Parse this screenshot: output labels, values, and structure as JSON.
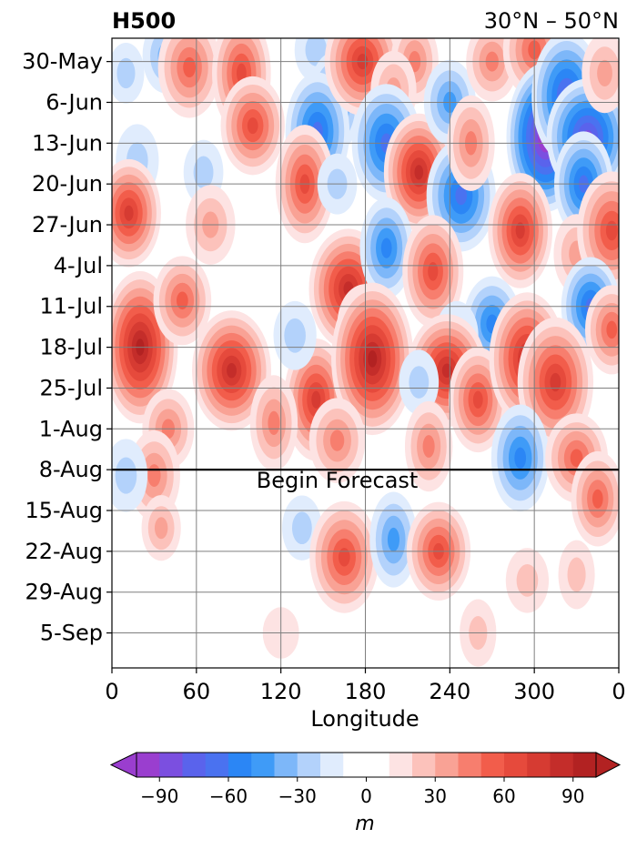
{
  "chart_data": {
    "type": "heatmap",
    "title_left": "H500",
    "title_right": "30°N – 50°N",
    "xlabel": "Longitude",
    "x_ticks": [
      "0",
      "60",
      "120",
      "180",
      "240",
      "300",
      "0"
    ],
    "y_ticks": [
      "30-May",
      "6-Jun",
      "13-Jun",
      "20-Jun",
      "27-Jun",
      "4-Jul",
      "11-Jul",
      "18-Jul",
      "25-Jul",
      "1-Aug",
      "8-Aug",
      "15-Aug",
      "22-Aug",
      "29-Aug",
      "5-Sep"
    ],
    "xlim": [
      0,
      360
    ],
    "ylim_dates": [
      "2022-05-26",
      "2022-09-11"
    ],
    "grid": true,
    "forecast_line": {
      "date": "8-Aug",
      "label": "Begin Forecast"
    },
    "colorbar": {
      "label": "m",
      "orientation": "horizontal",
      "extend": "both",
      "levels": [
        -100,
        -90,
        -80,
        -70,
        -60,
        -50,
        -40,
        -30,
        -20,
        -10,
        0,
        10,
        20,
        30,
        40,
        50,
        60,
        70,
        80,
        90,
        100
      ],
      "tick_labels": [
        "−90",
        "−60",
        "−30",
        "0",
        "30",
        "60",
        "90"
      ],
      "tick_values": [
        -90,
        -60,
        -30,
        0,
        30,
        60,
        90
      ],
      "colors": [
        "#9a3ecf",
        "#7b4fe0",
        "#5a63ec",
        "#4a72f0",
        "#2b86f5",
        "#3f9bf7",
        "#7db7f9",
        "#b3d2fb",
        "#e0ecfd",
        "#ffffff",
        "#ffffff",
        "#fde3e3",
        "#fcc2bb",
        "#f9a295",
        "#f77e6e",
        "#f25d4b",
        "#e64a3c",
        "#d63b32",
        "#c42d2a",
        "#b22222"
      ],
      "extend_low_color": "#9a3ecf",
      "extend_high_color": "#b22222"
    },
    "anomaly_blobs": [
      {
        "lon": 10,
        "date": "2022-06-01",
        "value": -20
      },
      {
        "lon": 38,
        "date": "2022-05-29",
        "value": -30
      },
      {
        "lon": 55,
        "date": "2022-05-31",
        "value": 50
      },
      {
        "lon": 92,
        "date": "2022-06-01",
        "value": 60
      },
      {
        "lon": 100,
        "date": "2022-06-10",
        "value": 60
      },
      {
        "lon": 145,
        "date": "2022-05-28",
        "value": -20
      },
      {
        "lon": 158,
        "date": "2022-06-06",
        "value": -50
      },
      {
        "lon": 146,
        "date": "2022-06-11",
        "value": -60
      },
      {
        "lon": 178,
        "date": "2022-05-30",
        "value": 70
      },
      {
        "lon": 215,
        "date": "2022-05-30",
        "value": 40
      },
      {
        "lon": 200,
        "date": "2022-06-04",
        "value": 30
      },
      {
        "lon": 195,
        "date": "2022-06-13",
        "value": -60
      },
      {
        "lon": 218,
        "date": "2022-06-18",
        "value": 80
      },
      {
        "lon": 240,
        "date": "2022-06-06",
        "value": -40
      },
      {
        "lon": 248,
        "date": "2022-06-22",
        "value": -60
      },
      {
        "lon": 255,
        "date": "2022-06-13",
        "value": 40
      },
      {
        "lon": 270,
        "date": "2022-05-30",
        "value": 40
      },
      {
        "lon": 300,
        "date": "2022-05-28",
        "value": 50
      },
      {
        "lon": 308,
        "date": "2022-06-12",
        "value": -95
      },
      {
        "lon": 323,
        "date": "2022-06-05",
        "value": -70
      },
      {
        "lon": 338,
        "date": "2022-06-12",
        "value": -80
      },
      {
        "lon": 335,
        "date": "2022-06-20",
        "value": -60
      },
      {
        "lon": 350,
        "date": "2022-06-01",
        "value": 30
      },
      {
        "lon": 18,
        "date": "2022-06-16",
        "value": -20
      },
      {
        "lon": 12,
        "date": "2022-06-25",
        "value": 70
      },
      {
        "lon": 65,
        "date": "2022-06-18",
        "value": -20
      },
      {
        "lon": 70,
        "date": "2022-06-27",
        "value": 30
      },
      {
        "lon": 137,
        "date": "2022-06-20",
        "value": 60
      },
      {
        "lon": 160,
        "date": "2022-06-20",
        "value": -20
      },
      {
        "lon": 168,
        "date": "2022-07-08",
        "value": 75
      },
      {
        "lon": 195,
        "date": "2022-07-01",
        "value": -50
      },
      {
        "lon": 228,
        "date": "2022-07-05",
        "value": 55
      },
      {
        "lon": 180,
        "date": "2022-07-14",
        "value": 40
      },
      {
        "lon": 290,
        "date": "2022-06-28",
        "value": 70
      },
      {
        "lon": 330,
        "date": "2022-07-02",
        "value": 30
      },
      {
        "lon": 355,
        "date": "2022-06-28",
        "value": 60
      },
      {
        "lon": 340,
        "date": "2022-07-11",
        "value": -60
      },
      {
        "lon": 270,
        "date": "2022-07-14",
        "value": -50
      },
      {
        "lon": 245,
        "date": "2022-07-16",
        "value": -20
      },
      {
        "lon": 20,
        "date": "2022-07-18",
        "value": 90
      },
      {
        "lon": 50,
        "date": "2022-07-10",
        "value": 50
      },
      {
        "lon": 85,
        "date": "2022-07-22",
        "value": 75
      },
      {
        "lon": 145,
        "date": "2022-07-27",
        "value": 70
      },
      {
        "lon": 185,
        "date": "2022-07-20",
        "value": 90
      },
      {
        "lon": 238,
        "date": "2022-07-22",
        "value": 75
      },
      {
        "lon": 260,
        "date": "2022-07-27",
        "value": 60
      },
      {
        "lon": 295,
        "date": "2022-07-20",
        "value": 80
      },
      {
        "lon": 315,
        "date": "2022-07-24",
        "value": 70
      },
      {
        "lon": 355,
        "date": "2022-07-15",
        "value": 50
      },
      {
        "lon": 218,
        "date": "2022-07-24",
        "value": -20
      },
      {
        "lon": 130,
        "date": "2022-07-16",
        "value": -20
      },
      {
        "lon": 115,
        "date": "2022-07-31",
        "value": 40
      },
      {
        "lon": 40,
        "date": "2022-08-01",
        "value": 40
      },
      {
        "lon": 160,
        "date": "2022-08-03",
        "value": 40
      },
      {
        "lon": 225,
        "date": "2022-08-04",
        "value": 40
      },
      {
        "lon": 290,
        "date": "2022-08-06",
        "value": -50
      },
      {
        "lon": 330,
        "date": "2022-08-06",
        "value": 50
      },
      {
        "lon": 345,
        "date": "2022-08-13",
        "value": 50
      },
      {
        "lon": 30,
        "date": "2022-08-09",
        "value": 40
      },
      {
        "lon": 10,
        "date": "2022-08-09",
        "value": -20
      },
      {
        "lon": 35,
        "date": "2022-08-18",
        "value": 25
      },
      {
        "lon": 135,
        "date": "2022-08-18",
        "value": -20
      },
      {
        "lon": 165,
        "date": "2022-08-23",
        "value": 60
      },
      {
        "lon": 200,
        "date": "2022-08-20",
        "value": -40
      },
      {
        "lon": 232,
        "date": "2022-08-22",
        "value": 60
      },
      {
        "lon": 295,
        "date": "2022-08-27",
        "value": 20
      },
      {
        "lon": 330,
        "date": "2022-08-26",
        "value": 20
      },
      {
        "lon": 260,
        "date": "2022-09-05",
        "value": 15
      },
      {
        "lon": 120,
        "date": "2022-09-05",
        "value": 10
      }
    ]
  }
}
